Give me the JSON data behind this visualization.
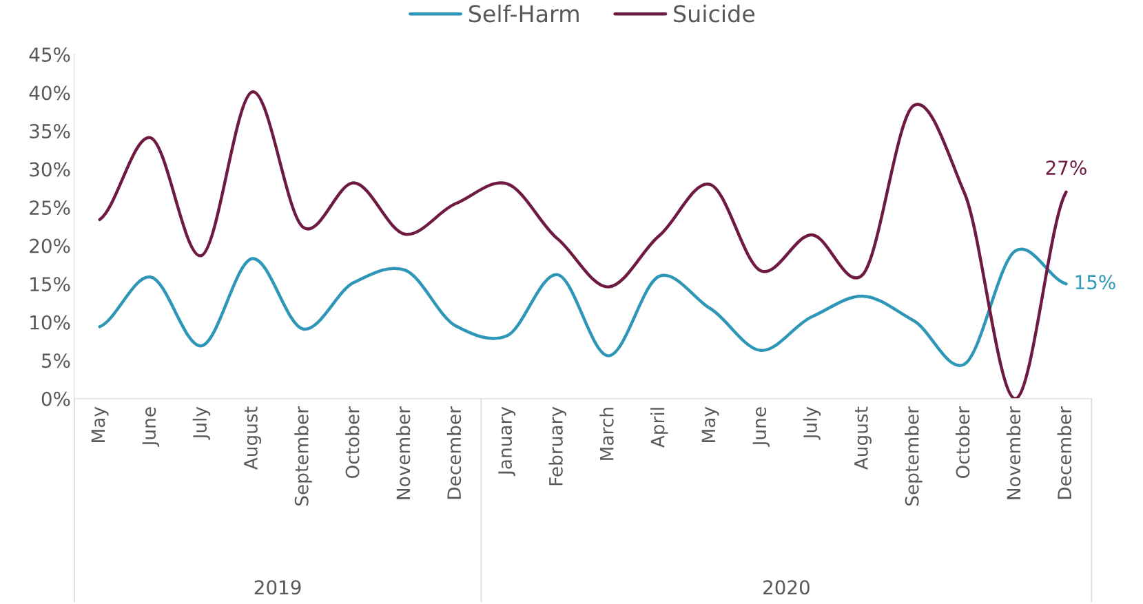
{
  "chart_data": {
    "type": "line",
    "categories": [
      "May",
      "June",
      "July",
      "August",
      "September",
      "October",
      "November",
      "December",
      "January",
      "February",
      "March",
      "April",
      "May",
      "June",
      "July",
      "August",
      "September",
      "October",
      "November",
      "December"
    ],
    "series": [
      {
        "name": "Self-Harm",
        "color": "#2e96b6",
        "values": [
          9.4,
          15.9,
          6.9,
          18.3,
          9.1,
          15.2,
          16.8,
          9.5,
          8.2,
          16.2,
          5.6,
          16.0,
          11.8,
          6.3,
          10.7,
          13.4,
          10.2,
          4.5,
          19.3,
          15
        ],
        "value_labels": [
          null,
          null,
          null,
          null,
          null,
          null,
          null,
          null,
          null,
          null,
          null,
          null,
          null,
          null,
          null,
          null,
          null,
          null,
          null,
          "15%"
        ]
      },
      {
        "name": "Suicide",
        "color": "#6e1a43",
        "values": [
          23.4,
          34.1,
          18.7,
          40.1,
          22.4,
          28.2,
          21.5,
          25.5,
          28.1,
          20.9,
          14.6,
          21.3,
          28.0,
          16.7,
          21.4,
          16.2,
          38.3,
          26.9,
          0,
          27
        ],
        "value_labels": [
          null,
          null,
          null,
          null,
          null,
          null,
          null,
          null,
          null,
          null,
          null,
          null,
          null,
          null,
          null,
          null,
          null,
          null,
          null,
          "27%"
        ]
      }
    ],
    "ylim": [
      0,
      45
    ],
    "yticks": [
      {
        "value": 0,
        "label": "0%"
      },
      {
        "value": 5,
        "label": "5%"
      },
      {
        "value": 10,
        "label": "10%"
      },
      {
        "value": 15,
        "label": "15%"
      },
      {
        "value": 20,
        "label": "20%"
      },
      {
        "value": 25,
        "label": "25%"
      },
      {
        "value": 30,
        "label": "30%"
      },
      {
        "value": 35,
        "label": "35%"
      },
      {
        "value": 40,
        "label": "40%"
      },
      {
        "value": 45,
        "label": "45%"
      }
    ],
    "annotations": [
      "2019",
      "2020"
    ],
    "grid": false,
    "legend": "top",
    "marker": "none",
    "line_style": "solid"
  }
}
